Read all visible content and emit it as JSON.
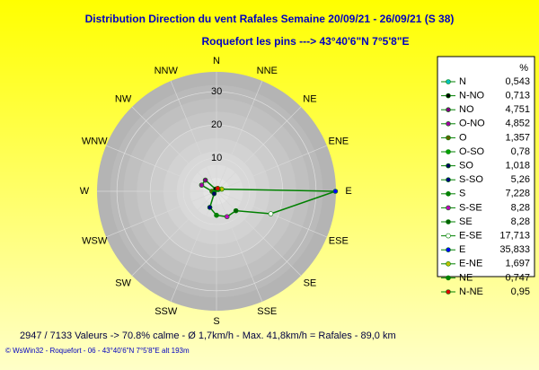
{
  "chart_data": {
    "type": "radar",
    "title": "Distribution Direction du vent Rafales  Semaine 20/09/21 - 26/09/21 (S 38)",
    "subtitle": "Roquefort les pins    --->  43°40'6\"N 7°5'8\"E",
    "direction_labels": [
      "N",
      "NNE",
      "NE",
      "ENE",
      "E",
      "ESE",
      "SE",
      "SSE",
      "S",
      "SSW",
      "SW",
      "WSW",
      "W",
      "WNW",
      "NW",
      "NNW"
    ],
    "rotation": "counterclockwise",
    "legend_title": "%",
    "categories": [
      "N",
      "N-NO",
      "NO",
      "O-NO",
      "O",
      "O-SO",
      "SO",
      "S-SO",
      "S",
      "S-SE",
      "SE",
      "E-SE",
      "E",
      "E-NE",
      "NE",
      "N-NE"
    ],
    "values": [
      0.543,
      0.713,
      4.751,
      4.852,
      1.357,
      0.78,
      1.018,
      5.26,
      7.228,
      8.28,
      8.28,
      17.713,
      35.833,
      1.697,
      0.747,
      0.95
    ],
    "value_labels": [
      "0,543",
      "0,713",
      "4,751",
      "4,852",
      "1,357",
      "0,78",
      "1,018",
      "5,26",
      "7,228",
      "8,28",
      "8,28",
      "17,713",
      "35,833",
      "1,697",
      "0,747",
      "0,95"
    ],
    "marker_colors": [
      "#00c0c0",
      "#000000",
      "#800080",
      "#a000a0",
      "#606000",
      "#00a000",
      "#000060",
      "#000080",
      "#008000",
      "#c000c0",
      "#006000",
      "#ffffff",
      "#0000ff",
      "#c0c000",
      "#008000",
      "#e00000"
    ],
    "line_color": "#008000",
    "rlim": [
      0,
      36
    ],
    "rticks": [
      10,
      20,
      30
    ],
    "footer": "2947 / 7133 Valeurs  -> 70.8% calme   -   Ø 1,7km/h  -   Max. 41,8km/h = Rafales   -   89,0 km",
    "credit": "© WsWin32  -  Roquefort - 06  -  43°40'6\"N 7°5'8\"E alt 193m"
  }
}
